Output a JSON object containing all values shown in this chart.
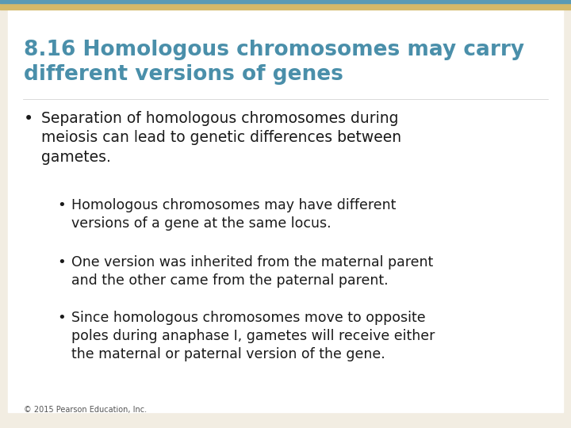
{
  "title_line1": "8.16 Homologous chromosomes may carry",
  "title_line2": "different versions of genes",
  "title_color": "#4a8faa",
  "background_color": "#f2ede2",
  "top_bar_color": "#d4b96a",
  "top_line_color": "#5a9ab5",
  "body_color": "#ffffff",
  "text_color": "#1a1a1a",
  "footer_text": "© 2015 Pearson Education, Inc.",
  "bullet1_line1": "Separation of homologous chromosomes during",
  "bullet1_line2": "meiosis can lead to genetic differences between",
  "bullet1_line3": "gametes.",
  "sub_bullet1_line1": "Homologous chromosomes may have different",
  "sub_bullet1_line2": "versions of a gene at the same locus.",
  "sub_bullet2_line1": "One version was inherited from the maternal parent",
  "sub_bullet2_line2": "and the other came from the paternal parent.",
  "sub_bullet3_line1": "Since homologous chromosomes move to opposite",
  "sub_bullet3_line2": "poles during anaphase I, gametes will receive either",
  "sub_bullet3_line3": "the maternal or paternal version of the gene."
}
